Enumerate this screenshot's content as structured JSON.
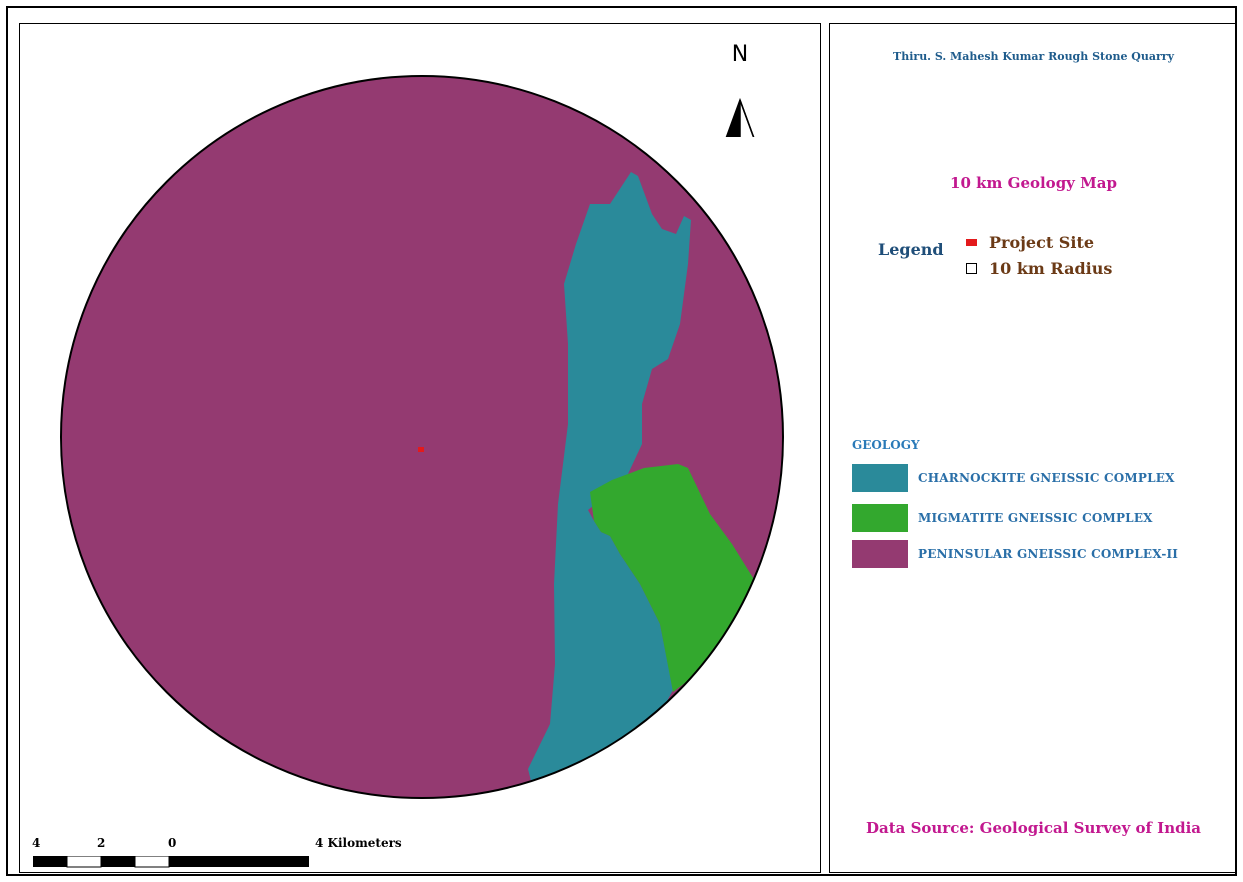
{
  "map": {
    "north_label": "N",
    "scale_labels": [
      "4",
      "2",
      "0",
      "4 Kilometers"
    ],
    "colors": {
      "charnockite": "#2a8a9a",
      "migmatite": "#33a82e",
      "peninsular": "#943a71",
      "project_site": "#e31a1c"
    }
  },
  "legend": {
    "project_title": "Thiru. S. Mahesh Kumar Rough Stone Quarry",
    "map_title": "10 km Geology Map",
    "heading": "Legend",
    "project_site_label": "Project Site",
    "radius_label": "10 km Radius",
    "geology_heading": "GEOLOGY",
    "geology_units": [
      {
        "label": "CHARNOCKITE GNEISSIC COMPLEX",
        "color": "#2a8a9a"
      },
      {
        "label": "MIGMATITE GNEISSIC COMPLEX",
        "color": "#33a82e"
      },
      {
        "label": "PENINSULAR GNEISSIC COMPLEX-II",
        "color": "#943a71"
      }
    ],
    "data_source": "Data Source: Geological Survey of India"
  }
}
